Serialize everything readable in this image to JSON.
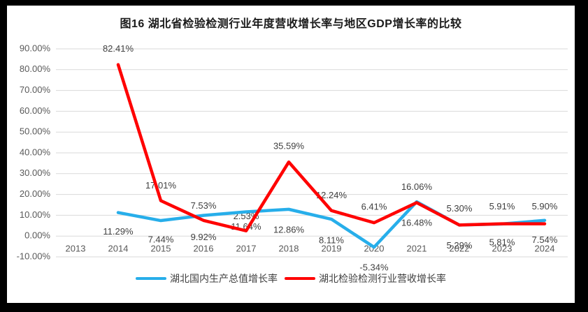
{
  "frame_color": "#000000",
  "chart_data": {
    "type": "line",
    "title": "图16  湖北省检验检测行业年度营收增长率与地区GDP增长率的比较",
    "categories": [
      "2013",
      "2014",
      "2015",
      "2016",
      "2017",
      "2018",
      "2019",
      "2020",
      "2021",
      "2022",
      "2023",
      "2024"
    ],
    "series": [
      {
        "name": "湖北国内生产总值增长率",
        "color": "#27AEEA",
        "values": [
          null,
          11.29,
          7.44,
          9.92,
          11.64,
          12.86,
          8.11,
          -5.34,
          16.48,
          5.29,
          5.81,
          7.54
        ],
        "label_dy": [
          0,
          28,
          28,
          32,
          22,
          30,
          31,
          30,
          31,
          30,
          27,
          29
        ]
      },
      {
        "name": "湖北检验检测行业营收增长率",
        "color": "#FF0000",
        "values": [
          null,
          82.41,
          17.01,
          7.53,
          2.53,
          35.59,
          12.24,
          6.41,
          16.06,
          5.3,
          5.91,
          5.9
        ],
        "label_dy": [
          0,
          -22,
          -21,
          -20,
          -20,
          -22,
          -21,
          -22,
          -22,
          -23,
          -24,
          -24
        ]
      }
    ],
    "ylim": [
      -10,
      90
    ],
    "ytick_step": 10,
    "ytick_format": "0.00%",
    "grid": true,
    "legend_position": "bottom",
    "grid_color": "#D9D9D9",
    "axis_text_color": "#595959",
    "label_text_color": "#404040"
  }
}
